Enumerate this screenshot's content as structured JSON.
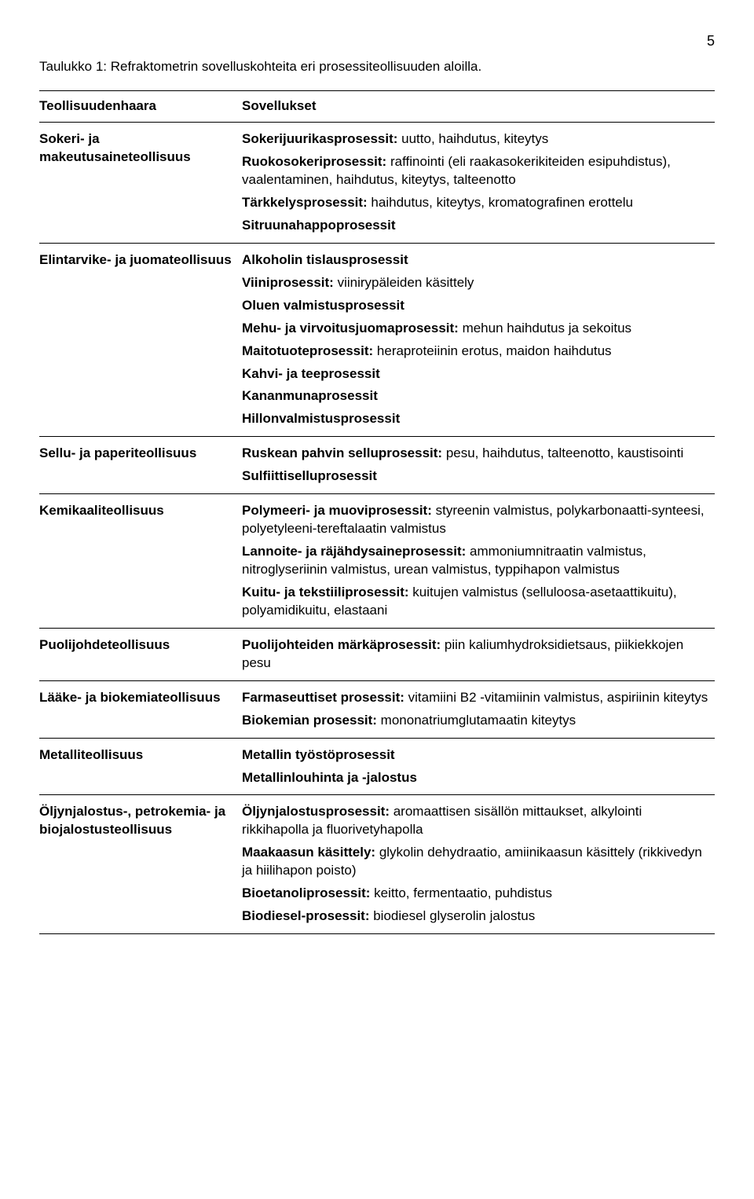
{
  "page_number": "5",
  "caption": "Taulukko 1: Refraktometrin sovelluskohteita eri prosessiteollisuuden aloilla.",
  "header": {
    "left": "Teollisuudenhaara",
    "right": "Sovellukset"
  },
  "rows": [
    {
      "industry": "Sokeri- ja makeutusaineteollisuus",
      "apps": [
        {
          "b": "Sokerijuurikasprosessit:",
          "t": " uutto, haihdutus, kiteytys"
        },
        {
          "b": "Ruokosokeriprosessit:",
          "t": " raffinointi (eli raakasokerikiteiden esipuhdistus), vaalentaminen, haihdutus, kiteytys, talteenotto"
        },
        {
          "b": "Tärkkelysprosessit:",
          "t": " haihdutus, kiteytys, kromatografinen erottelu"
        },
        {
          "b": "Sitruunahappoprosessit",
          "t": ""
        }
      ]
    },
    {
      "industry": "Elintarvike- ja juomateollisuus",
      "apps": [
        {
          "b": "Alkoholin tislausprosessit",
          "t": ""
        },
        {
          "b": "Viiniprosessit:",
          "t": " viinirypäleiden käsittely"
        },
        {
          "b": "Oluen valmistusprosessit",
          "t": ""
        },
        {
          "b": "Mehu- ja virvoitusjuomaprosessit:",
          "t": " mehun haihdutus ja sekoitus"
        },
        {
          "b": "Maitotuoteprosessit:",
          "t": " heraproteiinin erotus, maidon haihdutus"
        },
        {
          "b": "Kahvi- ja teeprosessit",
          "t": ""
        },
        {
          "b": "Kananmunaprosessit",
          "t": ""
        },
        {
          "b": "Hillonvalmistusprosessit",
          "t": ""
        }
      ]
    },
    {
      "industry": "Sellu- ja paperiteollisuus",
      "apps": [
        {
          "b": "Ruskean pahvin selluprosessit:",
          "t": " pesu, haihdutus, talteenotto, kaustisointi"
        },
        {
          "b": "Sulfiittiselluprosessit",
          "t": ""
        }
      ]
    },
    {
      "industry": "Kemikaaliteollisuus",
      "apps": [
        {
          "b": "Polymeeri- ja muoviprosessit:",
          "t": " styreenin valmistus, polykarbonaatti-synteesi, polyetyleeni-tereftalaatin valmistus"
        },
        {
          "b": "Lannoite- ja räjähdysaineprosessit:",
          "t": " ammoniumnitraatin valmistus, nitroglyseriinin valmistus, urean valmistus, typpihapon valmistus"
        },
        {
          "b": "Kuitu- ja tekstiiliprosessit:",
          "t": " kuitujen valmistus (selluloosa-asetaattikuitu), polyamidikuitu, elastaani"
        }
      ]
    },
    {
      "industry": "Puolijohdeteollisuus",
      "apps": [
        {
          "b": "Puolijohteiden märkäprosessit:",
          "t": " piin kaliumhydroksidietsaus, piikiekkojen pesu"
        }
      ]
    },
    {
      "industry": "Lääke- ja biokemiateollisuus",
      "apps": [
        {
          "b": "Farmaseuttiset prosessit:",
          "t": " vitamiini B2 -vitamiinin valmistus, aspiriinin kiteytys"
        },
        {
          "b": "Biokemian prosessit:",
          "t": " mononatriumglutamaatin kiteytys"
        }
      ]
    },
    {
      "industry": "Metalliteollisuus",
      "apps": [
        {
          "b": "Metallin työstöprosessit",
          "t": ""
        },
        {
          "b": "Metallinlouhinta ja -jalostus",
          "t": ""
        }
      ]
    },
    {
      "industry": "Öljynjalostus-, petrokemia- ja biojalostusteollisuus",
      "apps": [
        {
          "b": "Öljynjalostusprosessit:",
          "t": " aromaattisen sisällön mittaukset, alkylointi rikkihapolla ja fluorivetyhapolla"
        },
        {
          "b": "Maakaasun käsittely:",
          "t": " glykolin dehydraatio, amiinikaasun käsittely (rikkivedyn ja hiilihapon poisto)"
        },
        {
          "b": "Bioetanoliprosessit:",
          "t": " keitto, fermentaatio, puhdistus"
        },
        {
          "b": "Biodiesel-prosessit:",
          "t": " biodiesel glyserolin jalostus"
        }
      ]
    }
  ]
}
